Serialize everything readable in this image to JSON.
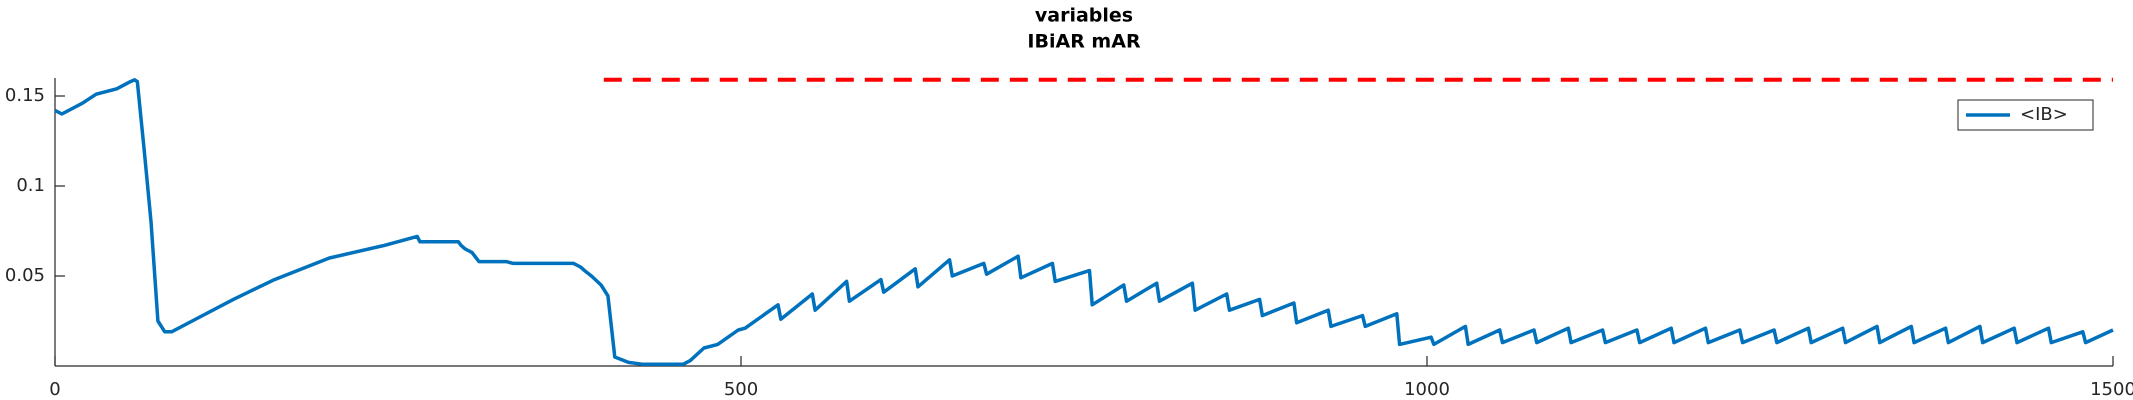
{
  "chart_data": {
    "type": "line",
    "title": "variables",
    "subtitle": "IBiAR mAR",
    "xlim": [
      0,
      1500
    ],
    "xticks": [
      0,
      500,
      1000,
      1500
    ],
    "ylim": [
      0,
      0.16
    ],
    "yticks": [
      0.05,
      0.1,
      0.15
    ],
    "legend": "top-right",
    "reference_line": {
      "y": 0.159,
      "x": [
        400,
        1500
      ],
      "color": "#ff0000",
      "dashed": true
    },
    "series": [
      {
        "name": "<IB>",
        "color": "#0072bd",
        "x": [
          0,
          5,
          20,
          30,
          45,
          55,
          58,
          60,
          65,
          70,
          75,
          80,
          85,
          100,
          130,
          160,
          200,
          240,
          264,
          266,
          294,
          296,
          299,
          304,
          309,
          329,
          334,
          359,
          378,
          383,
          386,
          391,
          398,
          403,
          408,
          418,
          428,
          458,
          463,
          473,
          483,
          498,
          503,
          527,
          529,
          552,
          554,
          577,
          579,
          602,
          604,
          627,
          629,
          652,
          654,
          677,
          679,
          702,
          704,
          727,
          729,
          754,
          756,
          779,
          781,
          803,
          805,
          829,
          831,
          854,
          856,
          878,
          880,
          903,
          905,
          928,
          930,
          953,
          955,
          978,
          980,
          1003,
          1005,
          1028,
          1030,
          1053,
          1055,
          1078,
          1080,
          1103,
          1105,
          1128,
          1130,
          1153,
          1155,
          1178,
          1180,
          1203,
          1205,
          1228,
          1230,
          1253,
          1255,
          1278,
          1280,
          1303,
          1305,
          1328,
          1330,
          1353,
          1355,
          1378,
          1380,
          1403,
          1405,
          1428,
          1430,
          1453,
          1455,
          1478,
          1480,
          1500
        ],
        "values": [
          0.142,
          0.14,
          0.146,
          0.151,
          0.154,
          0.158,
          0.159,
          0.158,
          0.12,
          0.08,
          0.025,
          0.019,
          0.019,
          0.025,
          0.037,
          0.048,
          0.06,
          0.067,
          0.072,
          0.069,
          0.069,
          0.067,
          0.065,
          0.063,
          0.058,
          0.058,
          0.057,
          0.057,
          0.057,
          0.055,
          0.053,
          0.05,
          0.045,
          0.039,
          0.005,
          0.002,
          0.001,
          0.001,
          0.003,
          0.01,
          0.012,
          0.02,
          0.021,
          0.034,
          0.026,
          0.04,
          0.031,
          0.047,
          0.036,
          0.048,
          0.041,
          0.054,
          0.044,
          0.059,
          0.05,
          0.057,
          0.051,
          0.061,
          0.049,
          0.057,
          0.047,
          0.053,
          0.034,
          0.045,
          0.036,
          0.046,
          0.036,
          0.046,
          0.031,
          0.04,
          0.031,
          0.037,
          0.028,
          0.035,
          0.024,
          0.031,
          0.022,
          0.028,
          0.022,
          0.029,
          0.012,
          0.016,
          0.012,
          0.022,
          0.012,
          0.02,
          0.013,
          0.02,
          0.013,
          0.021,
          0.013,
          0.02,
          0.013,
          0.02,
          0.013,
          0.021,
          0.013,
          0.021,
          0.013,
          0.02,
          0.013,
          0.02,
          0.013,
          0.021,
          0.013,
          0.021,
          0.013,
          0.022,
          0.013,
          0.022,
          0.013,
          0.021,
          0.013,
          0.022,
          0.013,
          0.021,
          0.013,
          0.021,
          0.013,
          0.019,
          0.013,
          0.02
        ]
      }
    ]
  }
}
